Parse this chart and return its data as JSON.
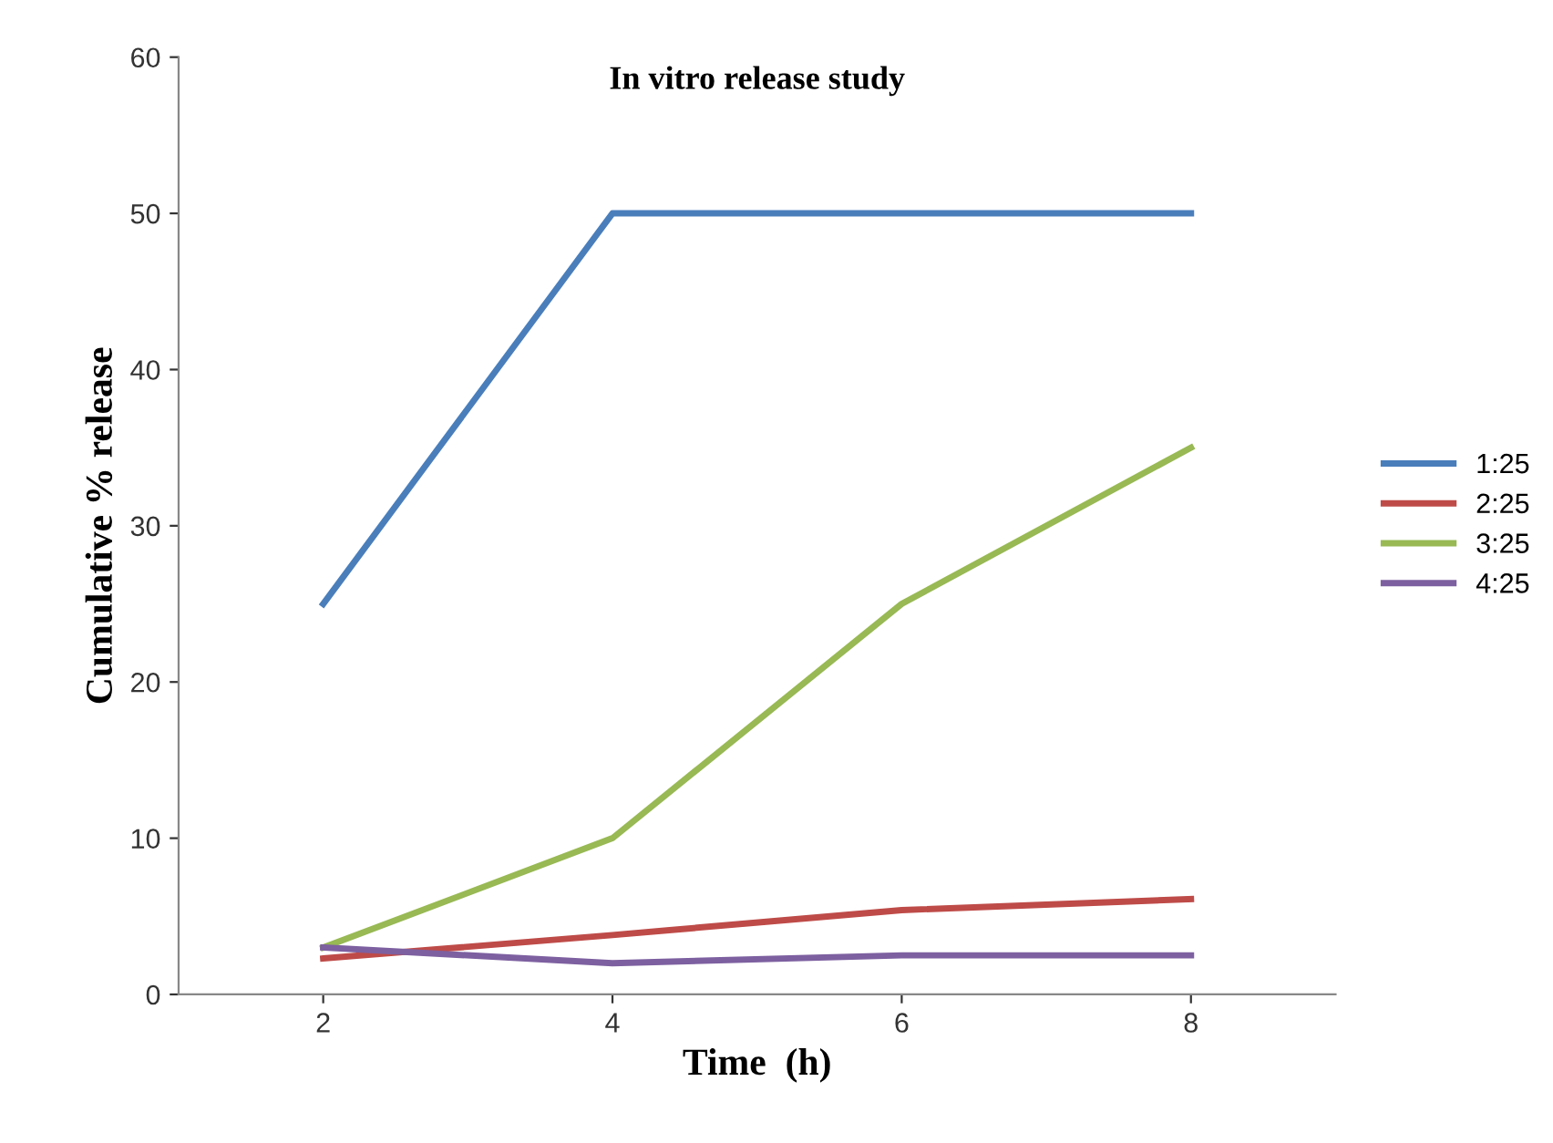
{
  "chart_data": {
    "type": "line",
    "title": "In vitro release study",
    "xlabel": "Time  (h)",
    "ylabel": "Cumulative % release",
    "categories": [
      "2",
      "4",
      "6",
      "8"
    ],
    "series": [
      {
        "name": "1:25",
        "color": "#4a7ebb",
        "values": [
          25,
          50,
          50,
          50
        ]
      },
      {
        "name": "2:25",
        "color": "#be4b48",
        "values": [
          2.3,
          3.8,
          5.4,
          6.1
        ]
      },
      {
        "name": "3:25",
        "color": "#98b954",
        "values": [
          3,
          10,
          25,
          35
        ]
      },
      {
        "name": "4:25",
        "color": "#7d60a0",
        "values": [
          3,
          2,
          2.5,
          2.5
        ]
      }
    ],
    "ylim": [
      0,
      60
    ],
    "yticks": [
      0,
      10,
      20,
      30,
      40,
      50,
      60
    ],
    "grid": false,
    "legend": "right",
    "marker": "none",
    "line_style": "solid"
  }
}
